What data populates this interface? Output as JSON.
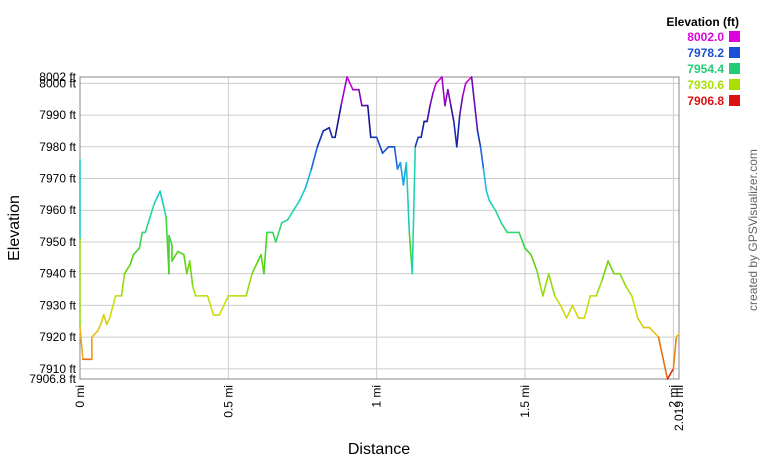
{
  "chart_data": {
    "type": "line",
    "xlabel": "Distance",
    "ylabel": "Elevation",
    "xlim": [
      0,
      2.019
    ],
    "ylim": [
      7906.8,
      8002.0
    ],
    "x_ticks": [
      {
        "value": 0,
        "label": "0 mi"
      },
      {
        "value": 0.5,
        "label": "0.5 mi"
      },
      {
        "value": 1,
        "label": "1 mi"
      },
      {
        "value": 1.5,
        "label": "1.5 mi"
      },
      {
        "value": 2,
        "label": "2 mi"
      },
      {
        "value": 2.019,
        "label": "2.019 mi"
      }
    ],
    "y_ticks": [
      {
        "value": 7906.8,
        "label": "7906.8 ft"
      },
      {
        "value": 7910,
        "label": "7910 ft"
      },
      {
        "value": 7920,
        "label": "7920 ft"
      },
      {
        "value": 7930,
        "label": "7930 ft"
      },
      {
        "value": 7940,
        "label": "7940 ft"
      },
      {
        "value": 7950,
        "label": "7950 ft"
      },
      {
        "value": 7960,
        "label": "7960 ft"
      },
      {
        "value": 7970,
        "label": "7970 ft"
      },
      {
        "value": 7980,
        "label": "7980 ft"
      },
      {
        "value": 7990,
        "label": "7990 ft"
      },
      {
        "value": 8000,
        "label": "8000 ft"
      },
      {
        "value": 8002,
        "label": "8002 ft"
      }
    ],
    "grid": true,
    "legend": {
      "title": "Elevation (ft)",
      "placement": "top-right",
      "items": [
        {
          "label": "8002.0",
          "color": "#dd00dd"
        },
        {
          "label": "7978.2",
          "color": "#1a4fd8"
        },
        {
          "label": "7954.4",
          "color": "#22cc77"
        },
        {
          "label": "7930.6",
          "color": "#aadd00"
        },
        {
          "label": "7906.8",
          "color": "#dd1111"
        }
      ]
    },
    "series": [
      {
        "x": [
          0,
          0.0,
          0.0,
          0.01,
          0.04,
          0.04,
          0.06,
          0.07,
          0.08,
          0.09,
          0.1,
          0.12,
          0.14,
          0.15,
          0.17,
          0.18,
          0.2,
          0.21,
          0.22,
          0.23,
          0.25,
          0.27,
          0.28,
          0.29,
          0.3,
          0.3,
          0.31,
          0.31,
          0.33,
          0.35,
          0.36,
          0.37,
          0.38,
          0.39,
          0.41,
          0.43,
          0.45,
          0.47,
          0.5,
          0.52,
          0.54,
          0.56,
          0.58,
          0.6,
          0.61,
          0.62,
          0.63,
          0.65,
          0.66,
          0.68,
          0.7,
          0.72,
          0.74,
          0.76,
          0.78,
          0.8,
          0.82,
          0.84,
          0.85,
          0.86,
          0.88,
          0.9,
          0.92,
          0.94,
          0.95,
          0.97,
          0.98,
          1.0,
          1.02,
          1.04,
          1.06,
          1.07,
          1.08,
          1.09,
          1.1,
          1.11,
          1.12,
          1.13,
          1.14,
          1.15,
          1.16,
          1.17,
          1.18,
          1.19,
          1.2,
          1.22,
          1.23,
          1.24,
          1.25,
          1.26,
          1.27,
          1.28,
          1.29,
          1.3,
          1.32,
          1.34,
          1.35,
          1.36,
          1.37,
          1.38,
          1.4,
          1.42,
          1.44,
          1.46,
          1.48,
          1.5,
          1.52,
          1.54,
          1.55,
          1.56,
          1.58,
          1.6,
          1.62,
          1.64,
          1.66,
          1.68,
          1.7,
          1.72,
          1.74,
          1.76,
          1.78,
          1.8,
          1.82,
          1.84,
          1.86,
          1.88,
          1.9,
          1.92,
          1.95,
          1.98,
          2.0,
          2.01,
          2.019
        ],
        "y": [
          7976,
          7951,
          7923,
          7913,
          7913,
          7920,
          7922,
          7924,
          7927,
          7924,
          7926,
          7933,
          7933,
          7940,
          7943,
          7946,
          7948,
          7953,
          7953,
          7956,
          7962,
          7966,
          7962,
          7958,
          7940,
          7952,
          7949,
          7944,
          7947,
          7946,
          7940,
          7944,
          7936,
          7933,
          7933,
          7933,
          7927,
          7927,
          7933,
          7933,
          7933,
          7933,
          7940,
          7944,
          7946,
          7940,
          7953,
          7953,
          7950,
          7956,
          7957,
          7960,
          7963,
          7967,
          7973,
          7980,
          7985,
          7986,
          7983,
          7983,
          7993,
          8002,
          7998,
          7998,
          7993,
          7993,
          7983,
          7983,
          7978,
          7980,
          7980,
          7973,
          7975,
          7968,
          7975,
          7953,
          7940,
          7980,
          7983,
          7983,
          7988,
          7988,
          7993,
          7997,
          8000,
          8002,
          7993,
          7998,
          7993,
          7988,
          7980,
          7990,
          7996,
          8000,
          8002,
          7985,
          7980,
          7973,
          7966,
          7963,
          7960,
          7956,
          7953,
          7953,
          7953,
          7948,
          7946,
          7941,
          7937,
          7933,
          7940,
          7933,
          7930,
          7926,
          7930,
          7926,
          7926,
          7933,
          7933,
          7938,
          7944,
          7940,
          7940,
          7936,
          7933,
          7926,
          7923,
          7923,
          7920,
          7906.8,
          7910,
          7920,
          7921
        ]
      }
    ]
  },
  "credit": "created by GPSVisualizer.com"
}
